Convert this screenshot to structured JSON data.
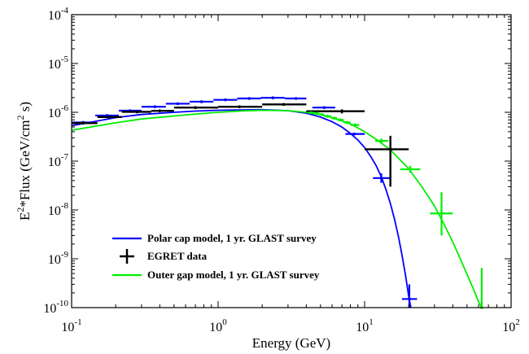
{
  "chart_data": {
    "type": "line",
    "xlabel": "Energy (GeV)",
    "ylabel": {
      "prefix": "E",
      "sup1": "2",
      "mid": "*Flux (GeV/cm",
      "sup2": "2",
      "suffix": " s)"
    },
    "xscale": "log",
    "yscale": "log",
    "xlim": [
      0.1,
      100
    ],
    "ylim": [
      1e-10,
      0.0001
    ],
    "x_ticks": [
      {
        "value": 0.1,
        "base": "10",
        "exp": "-1"
      },
      {
        "value": 1,
        "base": "10",
        "exp": "0"
      },
      {
        "value": 10,
        "base": "10",
        "exp": "1"
      },
      {
        "value": 100,
        "base": "10",
        "exp": "2"
      }
    ],
    "y_ticks": [
      {
        "value": 1e-10,
        "base": "10",
        "exp": "-10"
      },
      {
        "value": 1e-09,
        "base": "10",
        "exp": "-9"
      },
      {
        "value": 1e-08,
        "base": "10",
        "exp": "-8"
      },
      {
        "value": 1e-07,
        "base": "10",
        "exp": "-7"
      },
      {
        "value": 1e-06,
        "base": "10",
        "exp": "-6"
      },
      {
        "value": 1e-05,
        "base": "10",
        "exp": "-5"
      },
      {
        "value": 0.0001,
        "base": "10",
        "exp": "-4"
      }
    ],
    "grid": false,
    "legend_position": "lower-left",
    "series": [
      {
        "name": "Polar cap model, 1 yr. GLAST survey",
        "color": "#0000ff",
        "curve": [
          [
            0.1,
            5.3e-07
          ],
          [
            0.2,
            7.8e-07
          ],
          [
            0.3,
            9e-07
          ],
          [
            0.5,
            1e-06
          ],
          [
            0.7,
            1.06e-06
          ],
          [
            1,
            1.1e-06
          ],
          [
            1.5,
            1.12e-06
          ],
          [
            2,
            1.13e-06
          ],
          [
            3,
            1.08e-06
          ],
          [
            4,
            9.6e-07
          ],
          [
            5,
            8e-07
          ],
          [
            6,
            6.4e-07
          ],
          [
            7,
            5e-07
          ],
          [
            8,
            3.7e-07
          ],
          [
            9,
            2.7e-07
          ],
          [
            10,
            1.9e-07
          ],
          [
            11,
            1.25e-07
          ],
          [
            12,
            8e-08
          ],
          [
            13,
            4.8e-08
          ],
          [
            14,
            2.6e-08
          ],
          [
            15,
            1.35e-08
          ],
          [
            16,
            6.5e-09
          ],
          [
            17,
            2.9e-09
          ],
          [
            18,
            1.2e-09
          ],
          [
            19,
            4.7e-10
          ],
          [
            20,
            1.7e-10
          ],
          [
            20.7,
            1e-10
          ]
        ],
        "points": [
          {
            "x": 0.12,
            "y": 6.2e-07,
            "x_lo": 0.1,
            "x_hi": 0.145,
            "y_lo": 5.9e-07,
            "y_hi": 6.5e-07
          },
          {
            "x": 0.175,
            "y": 8.6e-07,
            "x_lo": 0.145,
            "x_hi": 0.21,
            "y_lo": 8.2e-07,
            "y_hi": 9e-07
          },
          {
            "x": 0.25,
            "y": 1.08e-06,
            "x_lo": 0.21,
            "x_hi": 0.3,
            "y_lo": 1.04e-06,
            "y_hi": 1.12e-06
          },
          {
            "x": 0.37,
            "y": 1.3e-06,
            "x_lo": 0.3,
            "x_hi": 0.44,
            "y_lo": 1.25e-06,
            "y_hi": 1.35e-06
          },
          {
            "x": 0.53,
            "y": 1.5e-06,
            "x_lo": 0.44,
            "x_hi": 0.64,
            "y_lo": 1.45e-06,
            "y_hi": 1.55e-06
          },
          {
            "x": 0.77,
            "y": 1.65e-06,
            "x_lo": 0.64,
            "x_hi": 0.93,
            "y_lo": 1.6e-06,
            "y_hi": 1.7e-06
          },
          {
            "x": 1.12,
            "y": 1.8e-06,
            "x_lo": 0.93,
            "x_hi": 1.35,
            "y_lo": 1.74e-06,
            "y_hi": 1.86e-06
          },
          {
            "x": 1.63,
            "y": 1.92e-06,
            "x_lo": 1.35,
            "x_hi": 1.96,
            "y_lo": 1.86e-06,
            "y_hi": 1.98e-06
          },
          {
            "x": 2.36,
            "y": 1.98e-06,
            "x_lo": 1.96,
            "x_hi": 2.85,
            "y_lo": 1.92e-06,
            "y_hi": 2.04e-06
          },
          {
            "x": 3.4,
            "y": 1.92e-06,
            "x_lo": 2.85,
            "x_hi": 4.0,
            "y_lo": 1.86e-06,
            "y_hi": 1.98e-06
          },
          {
            "x": 5.3,
            "y": 1.25e-06,
            "x_lo": 4.4,
            "x_hi": 6.3,
            "y_lo": 1.2e-06,
            "y_hi": 1.3e-06
          },
          {
            "x": 8.5,
            "y": 3.6e-07,
            "x_lo": 7.4,
            "x_hi": 10.0,
            "y_lo": 3.4e-07,
            "y_hi": 3.8e-07
          },
          {
            "x": 13.0,
            "y": 4.5e-08,
            "x_lo": 11.4,
            "x_hi": 14.8,
            "y_lo": 3.6e-08,
            "y_hi": 5.6e-08
          },
          {
            "x": 20.2,
            "y": 1.5e-10,
            "x_lo": 18.0,
            "x_hi": 22.8,
            "y_lo": 1e-10,
            "y_hi": 3e-10
          }
        ]
      },
      {
        "name": "EGRET data",
        "color": "#000000",
        "curve": [],
        "points": [
          {
            "x": 0.12,
            "y": 6e-07,
            "x_lo": 0.1,
            "x_hi": 0.15,
            "y_lo": 5.6e-07,
            "y_hi": 6.4e-07
          },
          {
            "x": 0.18,
            "y": 8e-07,
            "x_lo": 0.15,
            "x_hi": 0.22,
            "y_lo": 7.6e-07,
            "y_hi": 8.4e-07
          },
          {
            "x": 0.28,
            "y": 1.02e-06,
            "x_lo": 0.22,
            "x_hi": 0.35,
            "y_lo": 9.7e-07,
            "y_hi": 1.07e-06
          },
          {
            "x": 0.4,
            "y": 1.07e-06,
            "x_lo": 0.35,
            "x_hi": 0.5,
            "y_lo": 1.02e-06,
            "y_hi": 1.12e-06
          },
          {
            "x": 0.7,
            "y": 1.25e-06,
            "x_lo": 0.5,
            "x_hi": 1.0,
            "y_lo": 1.19e-06,
            "y_hi": 1.31e-06
          },
          {
            "x": 1.4,
            "y": 1.3e-06,
            "x_lo": 1.0,
            "x_hi": 2.0,
            "y_lo": 1.24e-06,
            "y_hi": 1.36e-06
          },
          {
            "x": 2.8,
            "y": 1.45e-06,
            "x_lo": 2.0,
            "x_hi": 4.0,
            "y_lo": 1.38e-06,
            "y_hi": 1.52e-06
          },
          {
            "x": 7.0,
            "y": 1.05e-06,
            "x_lo": 4.0,
            "x_hi": 10.0,
            "y_lo": 9.5e-07,
            "y_hi": 1.15e-06
          },
          {
            "x": 15.0,
            "y": 1.75e-07,
            "x_lo": 10.0,
            "x_hi": 20.0,
            "y_lo": 3e-08,
            "y_hi": 3.3e-07
          }
        ]
      },
      {
        "name": "Outer gap model, 1 yr. GLAST survey",
        "color": "#00ee00",
        "curve": [
          [
            0.1,
            4.3e-07
          ],
          [
            0.2,
            6.1e-07
          ],
          [
            0.3,
            7.3e-07
          ],
          [
            0.5,
            8.4e-07
          ],
          [
            0.7,
            9.2e-07
          ],
          [
            1,
            1e-06
          ],
          [
            1.5,
            1.07e-06
          ],
          [
            2,
            1.1e-06
          ],
          [
            3,
            1.08e-06
          ],
          [
            4,
            1e-06
          ],
          [
            5,
            9e-07
          ],
          [
            6,
            7.8e-07
          ],
          [
            8,
            5.8e-07
          ],
          [
            10,
            4e-07
          ],
          [
            12,
            2.8e-07
          ],
          [
            15,
            1.7e-07
          ],
          [
            20,
            7e-08
          ],
          [
            25,
            2.8e-08
          ],
          [
            30,
            1.2e-08
          ],
          [
            35,
            5e-09
          ],
          [
            40,
            2.2e-09
          ],
          [
            45,
            1e-09
          ],
          [
            50,
            4.8e-10
          ],
          [
            55,
            2.5e-10
          ],
          [
            60,
            1.3e-10
          ],
          [
            63,
            1e-10
          ]
        ],
        "points": [
          {
            "x": 4.3,
            "y": 9.8e-07,
            "x_lo": 4.1,
            "x_hi": 4.5,
            "y_lo": 9.4e-07,
            "y_hi": 1.02e-06
          },
          {
            "x": 4.7,
            "y": 9.5e-07,
            "x_lo": 4.5,
            "x_hi": 4.9,
            "y_lo": 9.1e-07,
            "y_hi": 9.9e-07
          },
          {
            "x": 5.1,
            "y": 9e-07,
            "x_lo": 4.9,
            "x_hi": 5.3,
            "y_lo": 8.6e-07,
            "y_hi": 9.4e-07
          },
          {
            "x": 5.6,
            "y": 8.3e-07,
            "x_lo": 5.3,
            "x_hi": 5.9,
            "y_lo": 7.9e-07,
            "y_hi": 8.7e-07
          },
          {
            "x": 6.2,
            "y": 7.6e-07,
            "x_lo": 5.9,
            "x_hi": 6.5,
            "y_lo": 7.2e-07,
            "y_hi": 8e-07
          },
          {
            "x": 6.8,
            "y": 7e-07,
            "x_lo": 6.5,
            "x_hi": 7.2,
            "y_lo": 6.6e-07,
            "y_hi": 7.4e-07
          },
          {
            "x": 7.6,
            "y": 6.2e-07,
            "x_lo": 7.2,
            "x_hi": 8.0,
            "y_lo": 5.8e-07,
            "y_hi": 6.6e-07
          },
          {
            "x": 8.6,
            "y": 5.5e-07,
            "x_lo": 8.0,
            "x_hi": 9.2,
            "y_lo": 5.1e-07,
            "y_hi": 5.9e-07
          },
          {
            "x": 13.0,
            "y": 2.6e-07,
            "x_lo": 11.8,
            "x_hi": 14.5,
            "y_lo": 2.3e-07,
            "y_hi": 2.9e-07
          },
          {
            "x": 20.5,
            "y": 6.8e-08,
            "x_lo": 17.5,
            "x_hi": 24.0,
            "y_lo": 5.8e-08,
            "y_hi": 8e-08
          },
          {
            "x": 33.5,
            "y": 8.5e-09,
            "x_lo": 28.0,
            "x_hi": 40.0,
            "y_lo": 3e-09,
            "y_hi": 2.3e-08
          },
          {
            "x": 63.0,
            "y": 1e-10,
            "x_lo": 63.0,
            "x_hi": 63.0,
            "y_lo": 1e-10,
            "y_hi": 6.5e-10
          }
        ]
      }
    ]
  }
}
